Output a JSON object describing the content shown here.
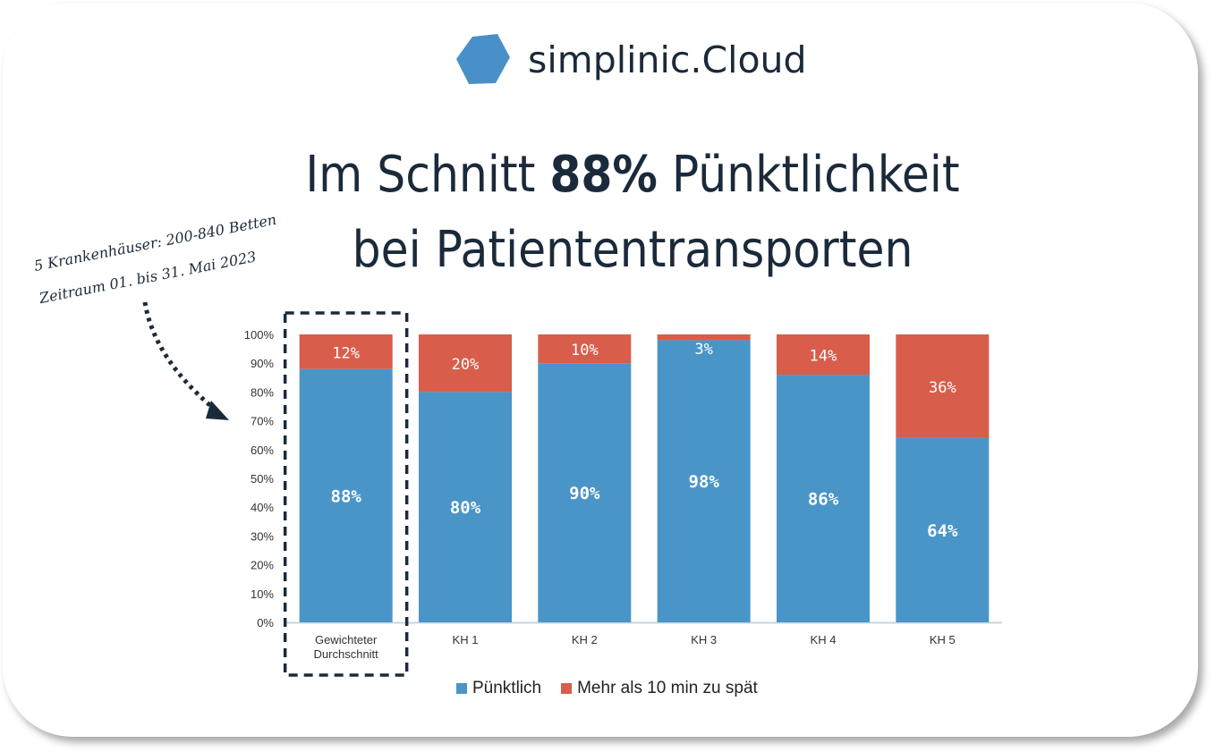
{
  "brand": {
    "name": "simplinic.Cloud",
    "icon": "hexagon-logo-icon",
    "color": "#4a90c8"
  },
  "title": {
    "line1_pre": "Im Schnitt ",
    "line1_bold": "88%",
    "line1_post": " Pünktlichkeit",
    "line2": "bei Patiententransporten"
  },
  "notes": {
    "hospitals": "5 Krankenhäuser: 200-840 Betten",
    "period": "Zeitraum 01. bis 31. Mai 2023"
  },
  "chart_data": {
    "type": "bar",
    "stacked": true,
    "title": "",
    "xlabel": "",
    "ylabel": "",
    "ylim": [
      0,
      100
    ],
    "y_ticks": [
      "0%",
      "10%",
      "20%",
      "30%",
      "40%",
      "50%",
      "60%",
      "70%",
      "80%",
      "90%",
      "100%"
    ],
    "categories": [
      "Gewichteter Durchschnitt",
      "KH 1",
      "KH 2",
      "KH 3",
      "KH 4",
      "KH 5"
    ],
    "category_lines": [
      [
        "Gewichteter",
        "Durchschnitt"
      ],
      [
        "KH 1"
      ],
      [
        "KH 2"
      ],
      [
        "KH 3"
      ],
      [
        "KH 4"
      ],
      [
        "KH 5"
      ]
    ],
    "highlight_category": "Gewichteter Durchschnitt",
    "legend_position": "bottom",
    "series": [
      {
        "name": "Pünktlich",
        "color": "#4a95c8",
        "values": [
          88,
          80,
          90,
          98,
          86,
          64
        ],
        "labels": [
          "88%",
          "80%",
          "90%",
          "98%",
          "86%",
          "64%"
        ]
      },
      {
        "name": "Mehr als 10 min zu spät",
        "color": "#d95d4b",
        "values": [
          12,
          20,
          10,
          3,
          14,
          36
        ],
        "labels": [
          "12%",
          "20%",
          "10%",
          "3%",
          "14%",
          "36%"
        ]
      }
    ]
  }
}
